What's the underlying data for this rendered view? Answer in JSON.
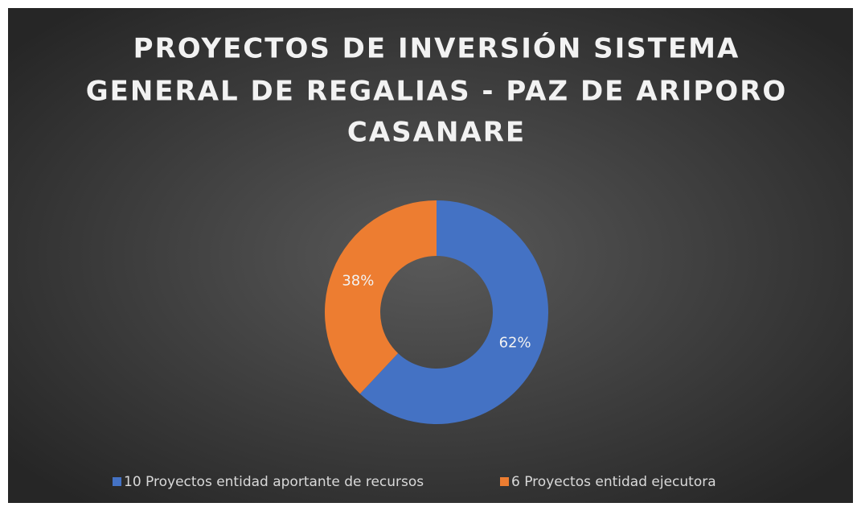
{
  "chart_data": {
    "type": "donut",
    "title": [
      "PROYECTOS DE INVERSIÓN SISTEMA",
      "GENERAL DE REGALIAS - PAZ DE ARIPORO",
      "CASANARE"
    ],
    "categories": [
      "10 Proyectos entidad aportante de recursos",
      "6 Proyectos entidad ejecutora"
    ],
    "values": [
      62,
      38
    ],
    "value_labels": [
      "62%",
      "38%"
    ],
    "colors": [
      "#4472c4",
      "#ed7d31"
    ],
    "legend": "bottom"
  }
}
